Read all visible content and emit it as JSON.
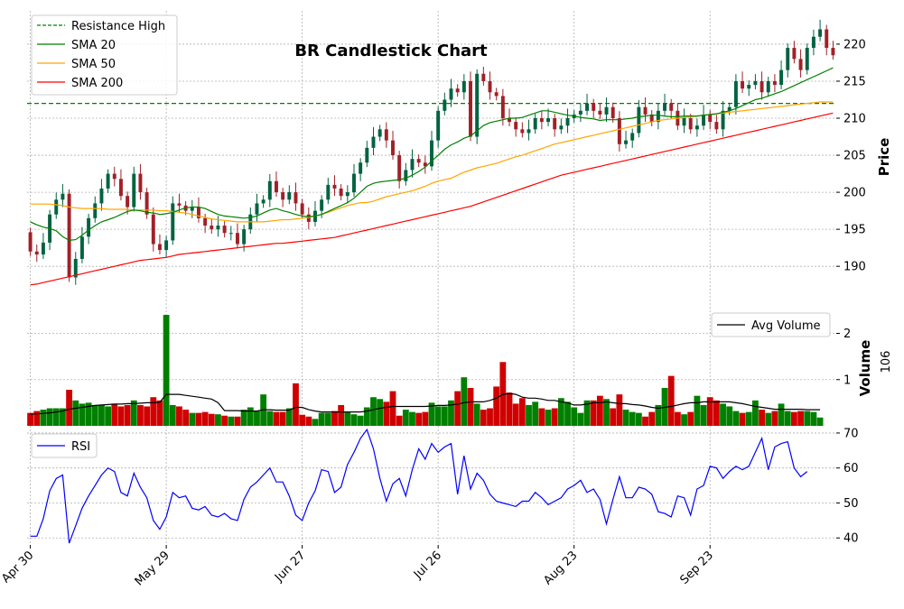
{
  "chart_data": {
    "type": "candlestick",
    "title": "BR Candlestick Chart",
    "x_tick_labels": [
      "Apr 30",
      "May 29",
      "Jun 27",
      "Jul 26",
      "Aug 23",
      "Sep 23"
    ],
    "x_tick_index": [
      0,
      21,
      42,
      63,
      84,
      105
    ],
    "price_panel": {
      "ylabel": "Price",
      "ylim": [
        186,
        224.5
      ],
      "yticks": [
        190,
        195,
        200,
        205,
        210,
        215,
        220
      ],
      "resistance_high": 212,
      "legend": [
        "Resistance High",
        "SMA 20",
        "SMA 50",
        "SMA 200"
      ],
      "colors": {
        "up": "#006340",
        "down": "#a02128",
        "sma20": "#008000",
        "sma50": "#ffa500",
        "sma200": "#ff0000",
        "resistance": "#008000"
      },
      "close": [
        192.0,
        191.6,
        193.2,
        197.0,
        199.0,
        199.8,
        188.5,
        191.0,
        194.0,
        196.5,
        198.5,
        200.5,
        202.5,
        201.8,
        199.5,
        198.0,
        202.5,
        200.0,
        197.0,
        193.0,
        192.2,
        193.5,
        198.5,
        198.2,
        197.5,
        198.0,
        196.5,
        195.5,
        195.0,
        195.5,
        194.5,
        194.5,
        193.0,
        195.0,
        197.0,
        198.5,
        199.0,
        201.5,
        200.0,
        199.0,
        200.0,
        198.5,
        197.0,
        196.0,
        197.5,
        199.0,
        201.0,
        200.5,
        199.5,
        200.0,
        202.5,
        204.0,
        206.0,
        207.5,
        208.5,
        207.0,
        205.0,
        201.5,
        203.0,
        204.5,
        204.0,
        203.5,
        207.0,
        211.0,
        212.5,
        214.0,
        213.5,
        215.0,
        207.5,
        216.0,
        215.0,
        213.5,
        213.0,
        210.0,
        209.5,
        208.5,
        208.0,
        208.5,
        210.0,
        209.5,
        210.0,
        208.5,
        209.0,
        210.0,
        210.5,
        211.0,
        212.0,
        211.0,
        210.5,
        211.5,
        210.0,
        206.5,
        207.0,
        208.0,
        211.5,
        210.5,
        209.5,
        211.0,
        212.0,
        211.0,
        209.0,
        210.0,
        208.5,
        209.0,
        210.5,
        209.5,
        208.5,
        211.0,
        211.5,
        215.0,
        214.0,
        214.5,
        215.0,
        213.5,
        215.0,
        214.5,
        216.5,
        219.5,
        218.0,
        216.5,
        219.5,
        221.0,
        222.0,
        219.5,
        218.5
      ],
      "sma20": [
        196.0,
        195.6,
        195.3,
        195.1,
        194.8,
        194.0,
        193.5,
        193.6,
        194.2,
        194.9,
        195.5,
        196.0,
        196.3,
        196.6,
        197.0,
        197.4,
        197.6,
        197.5,
        197.3,
        197.2,
        197.0,
        197.1,
        197.3,
        197.6,
        197.9,
        198.0,
        198.0,
        197.8,
        197.4,
        197.0,
        196.8,
        196.7,
        196.6,
        196.5,
        196.6,
        196.8,
        197.2,
        197.6,
        197.8,
        197.5,
        197.3,
        197.0,
        196.8,
        196.7,
        196.8,
        197.0,
        197.4,
        197.8,
        198.2,
        198.6,
        199.2,
        200.0,
        200.8,
        201.2,
        201.4,
        201.5,
        201.6,
        201.7,
        201.9,
        202.3,
        202.8,
        203.4,
        204.2,
        205.0,
        205.8,
        206.4,
        206.8,
        207.3,
        207.6,
        208.3,
        209.0,
        209.4,
        209.6,
        209.8,
        210.0,
        210.0,
        210.1,
        210.4,
        210.7,
        211.0,
        211.0,
        210.8,
        210.6,
        210.4,
        210.3,
        210.1,
        210.0,
        209.9,
        209.7,
        209.8,
        209.8,
        209.8,
        209.9,
        210.0,
        210.2,
        210.3,
        210.4,
        210.4,
        210.3,
        210.2,
        210.2,
        210.3,
        210.3,
        210.3,
        210.4,
        210.5,
        210.6,
        210.8,
        211.0,
        211.3,
        211.7,
        212.1,
        212.5,
        212.7,
        213.0,
        213.3,
        213.6,
        214.0,
        214.4,
        214.8,
        215.2,
        215.6,
        216.0,
        216.4,
        216.8
      ],
      "sma50": [
        198.4,
        198.4,
        198.4,
        198.4,
        198.3,
        198.2,
        198.0,
        197.9,
        197.8,
        197.8,
        197.8,
        197.8,
        197.7,
        197.7,
        197.7,
        197.7,
        197.6,
        197.6,
        197.6,
        197.6,
        197.5,
        197.5,
        197.4,
        197.3,
        197.2,
        197.0,
        196.8,
        196.6,
        196.4,
        196.3,
        196.2,
        196.1,
        196.0,
        196.0,
        196.0,
        196.0,
        196.0,
        196.1,
        196.2,
        196.3,
        196.3,
        196.4,
        196.5,
        196.6,
        196.8,
        197.0,
        197.3,
        197.6,
        197.9,
        198.2,
        198.4,
        198.6,
        198.6,
        198.8,
        199.1,
        199.4,
        199.6,
        199.8,
        200.0,
        200.2,
        200.5,
        200.8,
        201.2,
        201.5,
        201.7,
        201.9,
        202.3,
        202.7,
        203.0,
        203.3,
        203.5,
        203.7,
        203.9,
        204.2,
        204.5,
        204.8,
        205.0,
        205.3,
        205.6,
        205.9,
        206.2,
        206.5,
        206.7,
        206.9,
        207.1,
        207.3,
        207.5,
        207.7,
        207.9,
        208.1,
        208.3,
        208.5,
        208.7,
        208.9,
        209.1,
        209.3,
        209.5,
        209.7,
        209.8,
        209.9,
        210.0,
        210.1,
        210.2,
        210.3,
        210.4,
        210.5,
        210.6,
        210.7,
        210.8,
        210.9,
        211.0,
        211.1,
        211.2,
        211.3,
        211.4,
        211.5,
        211.6,
        211.7,
        211.8,
        211.9,
        212.0,
        212.1,
        212.2,
        212.2,
        212.2
      ],
      "sma200": [
        187.5,
        187.6,
        187.8,
        188.0,
        188.2,
        188.4,
        188.6,
        188.8,
        189.0,
        189.2,
        189.4,
        189.6,
        189.8,
        190.0,
        190.2,
        190.4,
        190.6,
        190.8,
        190.9,
        191.0,
        191.1,
        191.2,
        191.4,
        191.6,
        191.7,
        191.8,
        191.9,
        192.0,
        192.1,
        192.2,
        192.3,
        192.4,
        192.5,
        192.6,
        192.7,
        192.8,
        192.9,
        193.0,
        193.1,
        193.1,
        193.2,
        193.3,
        193.4,
        193.5,
        193.6,
        193.7,
        193.8,
        193.9,
        194.1,
        194.3,
        194.5,
        194.7,
        194.9,
        195.1,
        195.3,
        195.5,
        195.7,
        195.9,
        196.1,
        196.3,
        196.5,
        196.7,
        196.9,
        197.1,
        197.3,
        197.5,
        197.7,
        197.9,
        198.1,
        198.4,
        198.7,
        199.0,
        199.3,
        199.6,
        199.9,
        200.2,
        200.5,
        200.8,
        201.1,
        201.4,
        201.7,
        202.0,
        202.3,
        202.5,
        202.7,
        202.9,
        203.1,
        203.3,
        203.5,
        203.7,
        203.9,
        204.1,
        204.3,
        204.5,
        204.7,
        204.9,
        205.1,
        205.3,
        205.5,
        205.7,
        205.9,
        206.1,
        206.3,
        206.5,
        206.7,
        206.9,
        207.1,
        207.3,
        207.5,
        207.7,
        207.9,
        208.1,
        208.3,
        208.5,
        208.7,
        208.9,
        209.1,
        209.3,
        209.5,
        209.7,
        209.9,
        210.1,
        210.3,
        210.5,
        210.7
      ]
    },
    "volume_panel": {
      "ylabel": "Volume",
      "scale_label": "10^6",
      "ylim": [
        0,
        2.4
      ],
      "yticks": [
        1,
        2
      ],
      "legend": [
        "Avg Volume"
      ],
      "colors": {
        "up": "#008000",
        "down": "#d00000",
        "avg": "#000000"
      },
      "volume": [
        0.28,
        0.32,
        0.35,
        0.38,
        0.38,
        0.38,
        0.78,
        0.55,
        0.48,
        0.5,
        0.45,
        0.45,
        0.42,
        0.48,
        0.42,
        0.45,
        0.55,
        0.45,
        0.42,
        0.62,
        0.55,
        2.4,
        0.45,
        0.42,
        0.35,
        0.28,
        0.28,
        0.3,
        0.26,
        0.25,
        0.22,
        0.2,
        0.2,
        0.35,
        0.4,
        0.32,
        0.68,
        0.32,
        0.3,
        0.3,
        0.38,
        0.92,
        0.24,
        0.2,
        0.15,
        0.28,
        0.28,
        0.32,
        0.45,
        0.3,
        0.25,
        0.22,
        0.4,
        0.62,
        0.58,
        0.52,
        0.75,
        0.22,
        0.35,
        0.3,
        0.28,
        0.3,
        0.5,
        0.42,
        0.42,
        0.55,
        0.75,
        1.05,
        0.82,
        0.48,
        0.35,
        0.38,
        0.85,
        1.38,
        0.72,
        0.48,
        0.6,
        0.45,
        0.52,
        0.38,
        0.35,
        0.38,
        0.6,
        0.52,
        0.4,
        0.28,
        0.55,
        0.55,
        0.65,
        0.58,
        0.38,
        0.68,
        0.35,
        0.3,
        0.28,
        0.2,
        0.3,
        0.45,
        0.82,
        1.08,
        0.3,
        0.25,
        0.3,
        0.65,
        0.45,
        0.62,
        0.55,
        0.48,
        0.42,
        0.32,
        0.28,
        0.3,
        0.55,
        0.35,
        0.28,
        0.32,
        0.48,
        0.32,
        0.3,
        0.32,
        0.32,
        0.3,
        0.18
      ],
      "avg_volume": [
        0.25,
        0.26,
        0.27,
        0.28,
        0.3,
        0.32,
        0.36,
        0.38,
        0.4,
        0.42,
        0.44,
        0.45,
        0.46,
        0.47,
        0.47,
        0.48,
        0.48,
        0.49,
        0.5,
        0.5,
        0.51,
        0.68,
        0.68,
        0.68,
        0.66,
        0.64,
        0.62,
        0.6,
        0.58,
        0.5,
        0.33,
        0.33,
        0.33,
        0.32,
        0.32,
        0.32,
        0.35,
        0.35,
        0.34,
        0.34,
        0.34,
        0.4,
        0.4,
        0.35,
        0.32,
        0.3,
        0.3,
        0.3,
        0.3,
        0.3,
        0.3,
        0.3,
        0.32,
        0.35,
        0.38,
        0.4,
        0.42,
        0.42,
        0.42,
        0.42,
        0.42,
        0.42,
        0.43,
        0.44,
        0.44,
        0.45,
        0.47,
        0.5,
        0.52,
        0.52,
        0.52,
        0.55,
        0.6,
        0.68,
        0.7,
        0.68,
        0.62,
        0.6,
        0.6,
        0.58,
        0.55,
        0.55,
        0.52,
        0.5,
        0.45,
        0.45,
        0.47,
        0.5,
        0.5,
        0.52,
        0.5,
        0.48,
        0.48,
        0.46,
        0.45,
        0.43,
        0.4,
        0.38,
        0.4,
        0.42,
        0.45,
        0.48,
        0.5,
        0.5,
        0.52,
        0.52,
        0.52,
        0.52,
        0.52,
        0.5,
        0.48,
        0.45,
        0.42,
        0.4,
        0.38,
        0.36,
        0.36,
        0.36,
        0.36,
        0.36,
        0.35,
        0.35,
        0.35
      ]
    },
    "rsi_panel": {
      "ylim": [
        38,
        70.5
      ],
      "yticks": [
        40,
        50,
        60,
        70
      ],
      "legend": [
        "RSI"
      ],
      "color": "#0000ff",
      "rsi": [
        40.5,
        40.5,
        45.5,
        53.5,
        57.0,
        58.0,
        38.5,
        43.5,
        48.5,
        52.0,
        55.0,
        58.0,
        60.0,
        59.0,
        53.0,
        52.0,
        58.5,
        54.5,
        51.5,
        45.0,
        42.5,
        46.0,
        53.0,
        51.5,
        52.0,
        48.5,
        48.0,
        49.0,
        46.5,
        46.0,
        47.0,
        45.5,
        45.0,
        51.0,
        54.5,
        56.0,
        58.0,
        60.0,
        56.0,
        56.0,
        52.0,
        46.5,
        45.0,
        50.0,
        53.5,
        59.5,
        59.0,
        53.0,
        54.5,
        61.0,
        64.5,
        68.5,
        71.0,
        65.5,
        57.0,
        50.5,
        55.5,
        57.0,
        52.0,
        59.5,
        65.5,
        62.5,
        67.0,
        64.5,
        66.0,
        67.0,
        52.5,
        63.5,
        54.0,
        58.5,
        56.5,
        52.5,
        50.5,
        50.0,
        49.5,
        49.0,
        50.5,
        50.5,
        53.0,
        51.5,
        49.5,
        50.5,
        51.5,
        54.0,
        55.0,
        56.5,
        53.0,
        54.0,
        51.0,
        44.0,
        51.0,
        57.5,
        51.5,
        51.5,
        54.5,
        54.0,
        52.5,
        47.5,
        47.0,
        46.0,
        52.0,
        51.5,
        46.5,
        54.0,
        55.0,
        60.5,
        60.0,
        57.0,
        59.0,
        60.5,
        59.5,
        60.5,
        64.5,
        68.5,
        59.5,
        66.0,
        67.0,
        67.5,
        60.0,
        57.5,
        59.0
      ]
    }
  }
}
